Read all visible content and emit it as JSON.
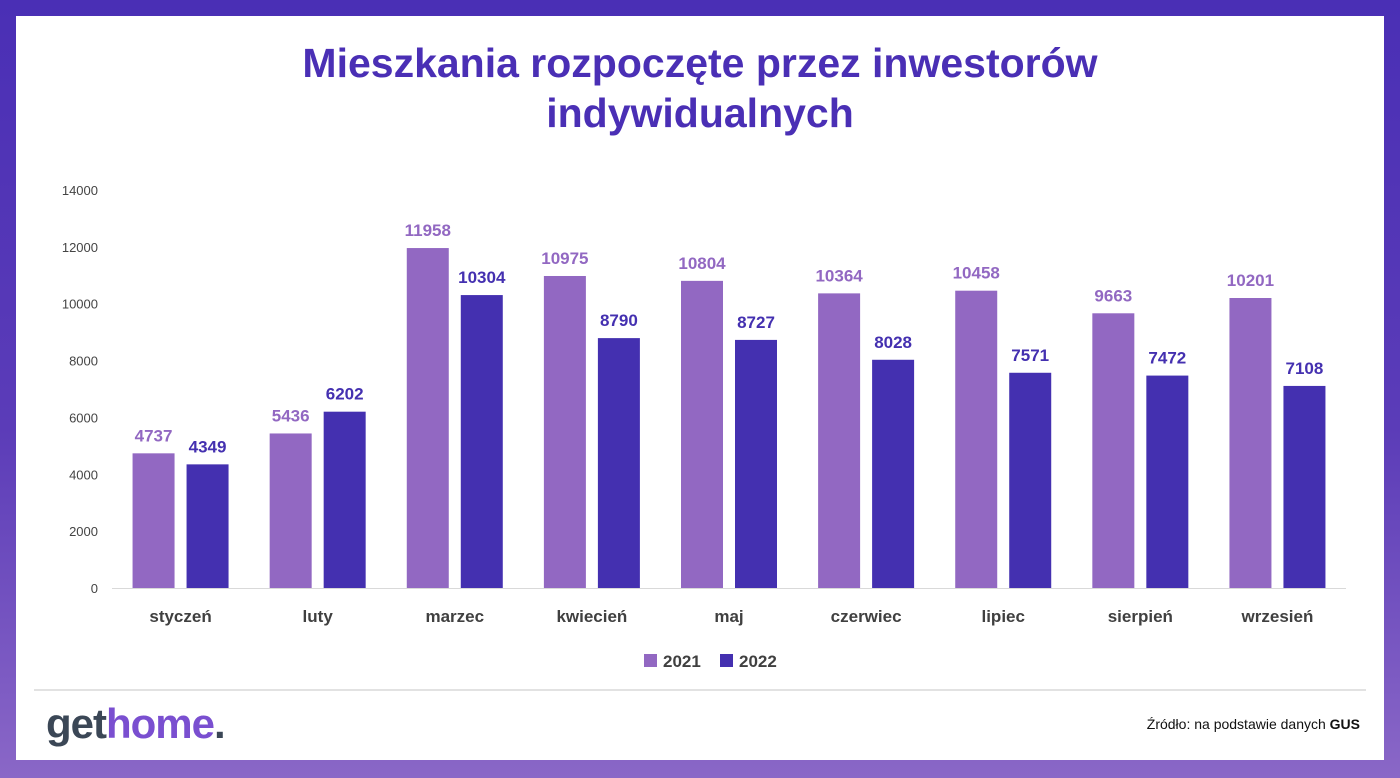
{
  "brand": {
    "logo_part1": "get",
    "logo_part2": "home",
    "logo_dot": ".",
    "color_dark": "#3b4756",
    "color_accent": "#7a4fd0"
  },
  "source": {
    "prefix": "Źródło: na podstawie danych ",
    "name": "GUS"
  },
  "chart_data": {
    "type": "bar",
    "title_line1": "Mieszkania rozpoczęte przez inwestorów",
    "title_line2": "indywidualnych",
    "categories": [
      "styczeń",
      "luty",
      "marzec",
      "kwiecień",
      "maj",
      "czerwiec",
      "lipiec",
      "sierpień",
      "wrzesień"
    ],
    "series": [
      {
        "name": "2021",
        "color": "#9268c2",
        "values": [
          4737,
          5436,
          11958,
          10975,
          10804,
          10364,
          10458,
          9663,
          10201
        ]
      },
      {
        "name": "2022",
        "color": "#4430b0",
        "values": [
          4349,
          6202,
          10304,
          8790,
          8727,
          8028,
          7571,
          7472,
          7108
        ]
      }
    ],
    "yticks": [
      0,
      2000,
      4000,
      6000,
      8000,
      10000,
      12000,
      14000
    ],
    "ylim": [
      0,
      14000
    ],
    "grid": false,
    "legend_position": "bottom-center",
    "data_labels": true
  }
}
